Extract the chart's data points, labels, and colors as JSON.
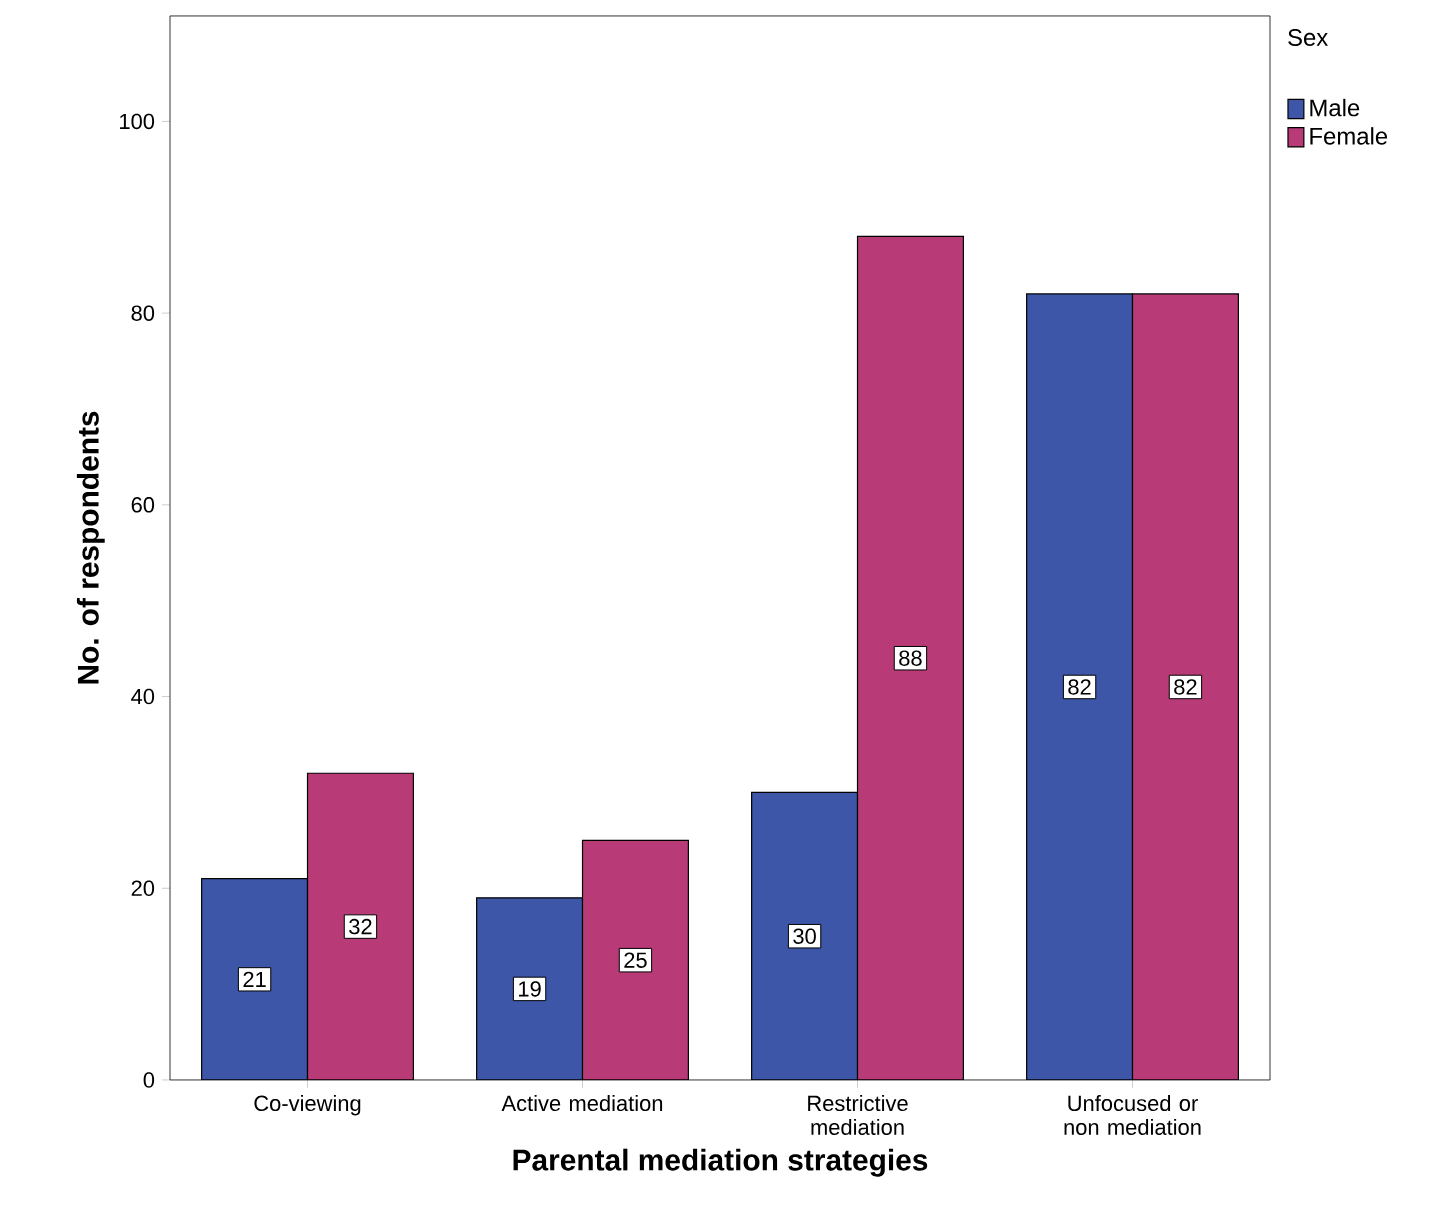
{
  "chart_data": {
    "type": "bar",
    "xlabel": "Parental mediation strategies",
    "ylabel": "No. of respondents",
    "legend_title": "Sex",
    "categories": [
      "Co-viewing",
      "Active mediation",
      "Restrictive mediation",
      "Unfocused or non mediation"
    ],
    "series": [
      {
        "name": "Male",
        "color": "#3d56a8",
        "values": [
          21,
          19,
          30,
          82
        ]
      },
      {
        "name": "Female",
        "color": "#b83b77",
        "values": [
          32,
          25,
          88,
          82
        ]
      }
    ],
    "ylim": [
      0,
      111
    ],
    "yticks": [
      0,
      20,
      40,
      60,
      80,
      100
    ],
    "data_labels": true,
    "grid": false,
    "legend": "top right"
  }
}
